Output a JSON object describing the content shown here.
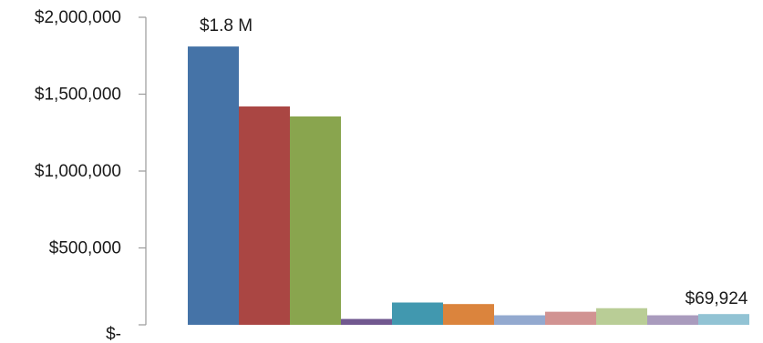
{
  "chart_data": {
    "type": "bar",
    "title": "",
    "xlabel": "",
    "ylabel": "",
    "ylim": [
      0,
      2000000
    ],
    "yticks": [
      {
        "value": 0,
        "label": "$-"
      },
      {
        "value": 500000,
        "label": "$500,000"
      },
      {
        "value": 1000000,
        "label": "$1,000,000"
      },
      {
        "value": 1500000,
        "label": "$1,500,000"
      },
      {
        "value": 2000000,
        "label": "$2,000,000"
      }
    ],
    "grid": false,
    "legend": "none",
    "values": [
      1810000,
      1420000,
      1355000,
      38000,
      145000,
      135000,
      62000,
      85000,
      108000,
      62000,
      69924
    ],
    "colors": [
      "#4573A7",
      "#AA4643",
      "#89A54E",
      "#71588F",
      "#4198AF",
      "#DB843D",
      "#93A9CF",
      "#D19392",
      "#B9CD96",
      "#A99BBD",
      "#92C3D4"
    ],
    "data_labels": [
      {
        "index": 0,
        "text": "$1.8 M"
      },
      {
        "index": 10,
        "text": "$69,924"
      }
    ]
  }
}
